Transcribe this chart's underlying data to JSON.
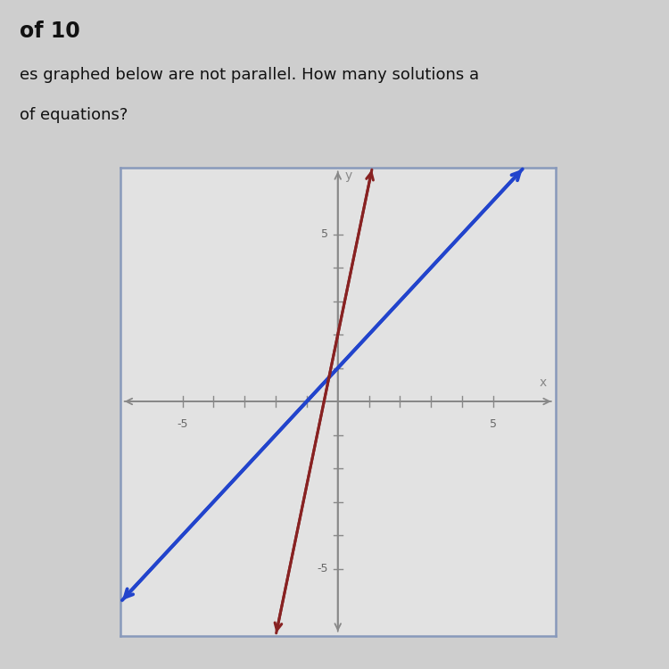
{
  "title_line1": "of 10",
  "title_line2": "es graphed below are not parallel. How many solutions a",
  "title_line3": "of equations?",
  "background_color": "#cecece",
  "plot_bg_color": "#e2e2e2",
  "xlim": [
    -7,
    7
  ],
  "ylim": [
    -7,
    7
  ],
  "axis_range": 5,
  "blue_line": {
    "slope": 1.0,
    "intercept": 1.0,
    "color": "#2244cc",
    "linewidth": 2.8
  },
  "red_line": {
    "slope": 4.5,
    "intercept": 2.0,
    "color": "#882222",
    "linewidth": 2.2
  },
  "axis_color": "#888888",
  "box_color": "#8899bb",
  "text_color": "#111111"
}
